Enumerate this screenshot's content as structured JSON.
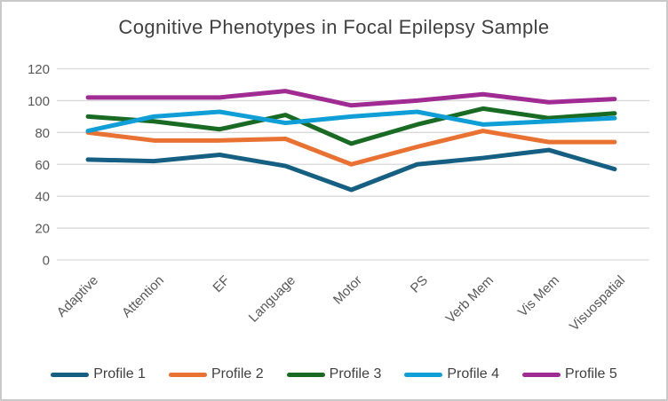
{
  "chart_data": {
    "type": "line",
    "title": "Cognitive Phenotypes in Focal Epilepsy Sample",
    "categories": [
      "Adaptive",
      "Attention",
      "EF",
      "Language",
      "Motor",
      "PS",
      "Verb Mem",
      "Vis Mem",
      "Visuospatial"
    ],
    "series": [
      {
        "name": "Profile 1",
        "color": "#156082",
        "values": [
          63,
          62,
          66,
          59,
          44,
          60,
          64,
          69,
          57
        ]
      },
      {
        "name": "Profile 2",
        "color": "#E97132",
        "values": [
          80,
          75,
          75,
          76,
          60,
          71,
          81,
          74,
          74
        ]
      },
      {
        "name": "Profile 3",
        "color": "#196B24",
        "values": [
          90,
          87,
          82,
          91,
          73,
          85,
          95,
          89,
          92
        ]
      },
      {
        "name": "Profile 4",
        "color": "#0F9ED5",
        "values": [
          81,
          90,
          93,
          86,
          90,
          93,
          85,
          87,
          89
        ]
      },
      {
        "name": "Profile 5",
        "color": "#A02B93",
        "values": [
          102,
          102,
          102,
          106,
          97,
          100,
          104,
          99,
          101
        ]
      }
    ],
    "xlabel": "",
    "ylabel": "",
    "ylim": [
      0,
      120
    ],
    "yticks": [
      0,
      20,
      40,
      60,
      80,
      100,
      120
    ],
    "grid": true,
    "legend_position": "bottom"
  },
  "styles": {
    "background": "#FFFFFF",
    "border_color": "#C9C9C9",
    "grid_color": "#D9D9D9",
    "title_color": "#404040",
    "tick_label_color": "#595959",
    "legend_text_color": "#404040"
  }
}
